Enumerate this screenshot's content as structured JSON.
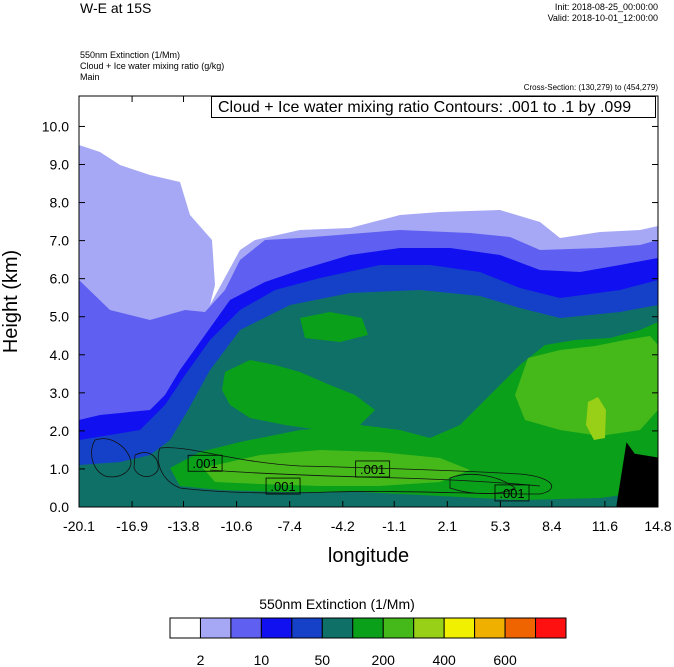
{
  "header": {
    "title": "W-E at 15S",
    "init": "Init: 2018-08-25_00:00:00",
    "valid": "Valid: 2018-10-01_12:00:00",
    "fields": [
      "550nm Extinction   (1/Mm)",
      "Cloud + Ice water mixing ratio   (g/kg)",
      "Main"
    ],
    "cross_section": "Cross-Section: (130,279) to (454,279)",
    "contour_info": "Cloud + Ice water mixing ratio Contours: .001 to .1 by .099"
  },
  "chart_data": {
    "type": "heatmap",
    "xlabel": "longitude",
    "ylabel": "Height (km)",
    "xticks": [
      "-20.1",
      "-16.9",
      "-13.8",
      "-10.6",
      "-7.4",
      "-4.2",
      "-1.1",
      "2.1",
      "5.3",
      "8.4",
      "11.6",
      "14.8"
    ],
    "xlim": [
      -20.1,
      14.8
    ],
    "ylim": [
      0.0,
      10.8
    ],
    "yticks": [
      "0.0",
      "1.0",
      "2.0",
      "3.0",
      "4.0",
      "5.0",
      "6.0",
      "7.0",
      "8.0",
      "9.0",
      "10.0"
    ],
    "color_levels": [
      "#ffffff",
      "#a6a8f5",
      "#5f5ff2",
      "#1010f0",
      "#1540c8",
      "#0f7068",
      "#0aa01a",
      "#45b81a",
      "#98d018",
      "#f0f000",
      "#f0b000",
      "#f06400",
      "#ff1010"
    ],
    "contour_labels": [
      {
        "text": ".001",
        "lon": -12.5,
        "h": 1.15
      },
      {
        "text": ".001",
        "lon": -7.8,
        "h": 0.55
      },
      {
        "text": ".001",
        "lon": -2.4,
        "h": 1.0
      },
      {
        "text": ".001",
        "lon": 6.0,
        "h": 0.37
      }
    ],
    "terrain": {
      "lon": [
        12.3,
        12.9,
        13.4,
        14.8
      ],
      "h": [
        0.05,
        1.7,
        1.4,
        1.3
      ]
    },
    "colorbar": {
      "title": "550nm Extinction  (1/Mm)",
      "tick_labels": [
        "2",
        "10",
        "50",
        "200",
        "400",
        "600"
      ]
    }
  }
}
